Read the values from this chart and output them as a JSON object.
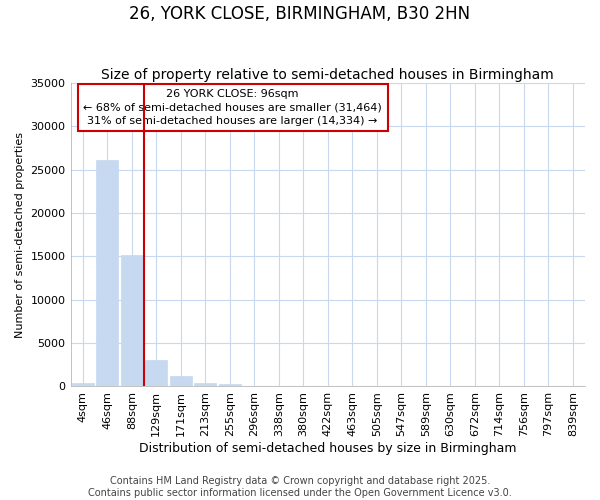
{
  "title": "26, YORK CLOSE, BIRMINGHAM, B30 2HN",
  "subtitle": "Size of property relative to semi-detached houses in Birmingham",
  "xlabel": "Distribution of semi-detached houses by size in Birmingham",
  "ylabel": "Number of semi-detached properties",
  "categories": [
    "4sqm",
    "46sqm",
    "88sqm",
    "129sqm",
    "171sqm",
    "213sqm",
    "255sqm",
    "296sqm",
    "338sqm",
    "380sqm",
    "422sqm",
    "463sqm",
    "505sqm",
    "547sqm",
    "589sqm",
    "630sqm",
    "672sqm",
    "714sqm",
    "756sqm",
    "797sqm",
    "839sqm"
  ],
  "values": [
    400,
    26100,
    15200,
    3100,
    1200,
    450,
    280,
    0,
    0,
    0,
    0,
    0,
    0,
    0,
    0,
    0,
    0,
    0,
    0,
    0,
    0
  ],
  "bar_color": "#c6d9f1",
  "bar_edgecolor": "#c6d9f1",
  "background_color": "#ffffff",
  "grid_color": "#c8d8ee",
  "vline_x": 2.5,
  "vline_color": "#cc0000",
  "ylim": [
    0,
    35000
  ],
  "annotation_text": "26 YORK CLOSE: 96sqm\n← 68% of semi-detached houses are smaller (31,464)\n31% of semi-detached houses are larger (14,334) →",
  "annotation_box_color": "#ffffff",
  "annotation_border_color": "#cc0000",
  "footer1": "Contains HM Land Registry data © Crown copyright and database right 2025.",
  "footer2": "Contains public sector information licensed under the Open Government Licence v3.0.",
  "title_fontsize": 12,
  "subtitle_fontsize": 10,
  "annotation_fontsize": 8,
  "tick_fontsize": 8,
  "ylabel_fontsize": 8,
  "xlabel_fontsize": 9,
  "footer_fontsize": 7
}
